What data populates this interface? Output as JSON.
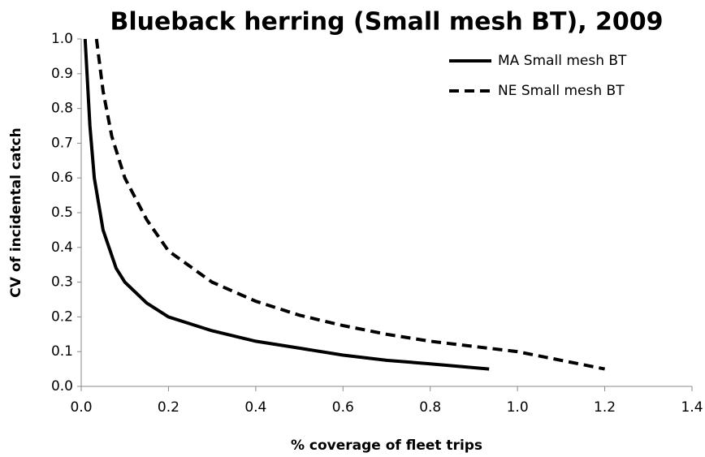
{
  "chart_data": {
    "type": "line",
    "title": "Blueback herring (Small mesh BT), 2009",
    "x_label": "% coverage of fleet trips",
    "y_label": "CV of incidental catch",
    "xlim": [
      0,
      1.4
    ],
    "xticks": [
      {
        "value": 0,
        "label": "0.0"
      },
      0.2,
      0.4,
      0.6,
      0.8,
      {
        "value": 1,
        "label": "1.0"
      },
      1.2,
      1.4
    ],
    "ylim": [
      0,
      1
    ],
    "yticks": [
      {
        "value": 0,
        "label": "0.0"
      },
      0.1,
      0.2,
      0.3,
      0.4,
      0.5,
      0.6,
      0.7,
      0.8,
      0.9,
      {
        "value": 1,
        "label": "1.0"
      }
    ],
    "grid": false,
    "legend": "top-right",
    "series": [
      {
        "name": "MA Small mesh BT",
        "color": "#000000",
        "line_style": "solid",
        "x": [
          0.009,
          0.02,
          0.03,
          0.05,
          0.08,
          0.1,
          0.15,
          0.2,
          0.3,
          0.4,
          0.5,
          0.6,
          0.7,
          0.8,
          0.935
        ],
        "values": [
          1.0,
          0.75,
          0.6,
          0.45,
          0.34,
          0.3,
          0.24,
          0.2,
          0.16,
          0.13,
          0.11,
          0.09,
          0.075,
          0.065,
          0.05
        ]
      },
      {
        "name": "NE Small mesh BT",
        "color": "#000000",
        "line_style": "dashed",
        "x": [
          0.035,
          0.05,
          0.07,
          0.1,
          0.15,
          0.2,
          0.3,
          0.4,
          0.5,
          0.6,
          0.7,
          0.8,
          0.9,
          1.0,
          1.1,
          1.2
        ],
        "values": [
          1.0,
          0.85,
          0.72,
          0.6,
          0.48,
          0.39,
          0.3,
          0.245,
          0.205,
          0.175,
          0.15,
          0.13,
          0.115,
          0.1,
          0.075,
          0.05
        ]
      }
    ]
  }
}
